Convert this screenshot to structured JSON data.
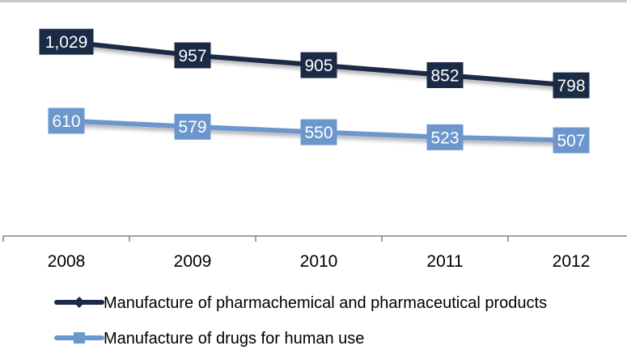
{
  "chart_data": {
    "type": "line",
    "categories": [
      "2008",
      "2009",
      "2010",
      "2011",
      "2012"
    ],
    "series": [
      {
        "name": "Manufacture of pharmachemical and pharmaceutical products",
        "values": [
          1029,
          957,
          905,
          852,
          798
        ],
        "value_labels": [
          "1,029",
          "957",
          "905",
          "852",
          "798"
        ],
        "color": "#1b2a45",
        "marker": "diamond"
      },
      {
        "name": "Manufacture of drugs for human use",
        "values": [
          610,
          579,
          550,
          523,
          507
        ],
        "value_labels": [
          "610",
          "579",
          "550",
          "523",
          "507"
        ],
        "color": "#6c97cd",
        "marker": "square"
      }
    ],
    "ylim": [
      0,
      1250
    ],
    "grid": false,
    "legend": "bottom",
    "colors": {
      "top_rule": "#c8c8c8",
      "axis": "#808080",
      "label_text": "#ffffff",
      "tick_text": "#000000"
    }
  }
}
